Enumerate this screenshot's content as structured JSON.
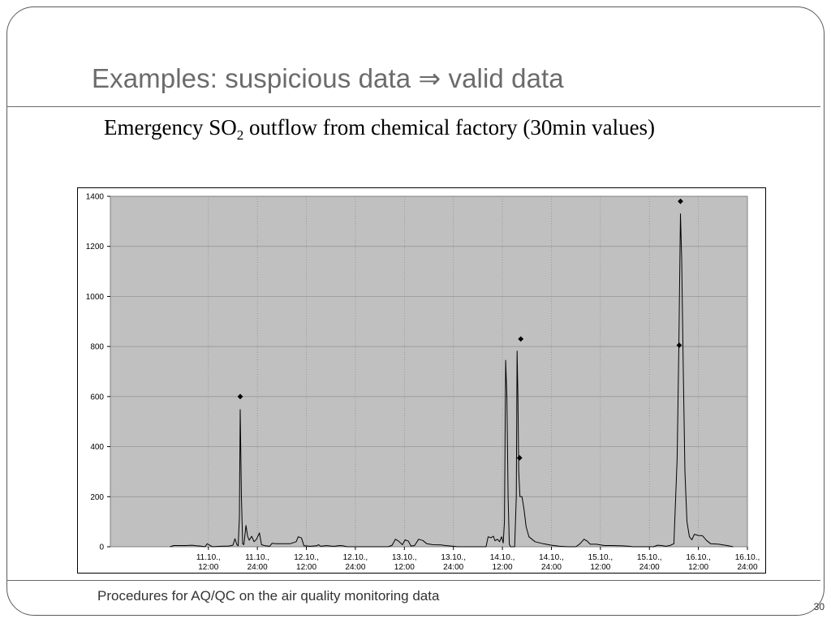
{
  "slide": {
    "title": "Examples: suspicious data ⇒ valid data",
    "subtitle_prefix": "Emergency SO",
    "subtitle_subscript": "2",
    "subtitle_suffix": " outflow from chemical factory (30min values)",
    "footer": "Procedures for AQ/QC on the air quality monitoring data",
    "page_number": "30"
  },
  "chart_data": {
    "type": "line",
    "title": "",
    "xlabel": "",
    "ylabel": "",
    "ylim": [
      0,
      1400
    ],
    "y_ticks": [
      0,
      200,
      400,
      600,
      800,
      1000,
      1200,
      1400
    ],
    "xlim_hours": [
      -24,
      132
    ],
    "x_ticks": [
      {
        "h": 0,
        "line1": "11.10.,",
        "line2": "12:00"
      },
      {
        "h": 12,
        "line1": "11.10.,",
        "line2": "24:00"
      },
      {
        "h": 24,
        "line1": "12.10.,",
        "line2": "12:00"
      },
      {
        "h": 36,
        "line1": "12.10.,",
        "line2": "24:00"
      },
      {
        "h": 48,
        "line1": "13.10.,",
        "line2": "12:00"
      },
      {
        "h": 60,
        "line1": "13.10.,",
        "line2": "24:00"
      },
      {
        "h": 72,
        "line1": "14.10.,",
        "line2": "12:00"
      },
      {
        "h": 84,
        "line1": "14.10.,",
        "line2": "24:00"
      },
      {
        "h": 96,
        "line1": "15.10.,",
        "line2": "12:00"
      },
      {
        "h": 108,
        "line1": "15.10.,",
        "line2": "24:00"
      },
      {
        "h": 120,
        "line1": "16.10.,",
        "line2": "12:00"
      },
      {
        "h": 132,
        "line1": "16.10.,",
        "line2": "24:00"
      }
    ],
    "grid": true,
    "background_color": "#c0c0c0",
    "line_color": "#000000",
    "series": [
      {
        "type": "line",
        "points": [
          [
            -9.4,
            0
          ],
          [
            -8.5,
            5
          ],
          [
            -7,
            5
          ],
          [
            -5.5,
            5
          ],
          [
            -4,
            6
          ],
          [
            -3,
            4
          ],
          [
            -2,
            3
          ],
          [
            -0.8,
            0
          ],
          [
            -0.3,
            12
          ],
          [
            0.3,
            6
          ],
          [
            1,
            0
          ],
          [
            3,
            2
          ],
          [
            5,
            3
          ],
          [
            6,
            6
          ],
          [
            6.5,
            32
          ],
          [
            7,
            8
          ],
          [
            7.3,
            4
          ],
          [
            7.6,
            120
          ],
          [
            7.8,
            548
          ],
          [
            8.1,
            200
          ],
          [
            8.4,
            12
          ],
          [
            8.7,
            8
          ],
          [
            9.2,
            85
          ],
          [
            9.6,
            42
          ],
          [
            10,
            26
          ],
          [
            10.6,
            42
          ],
          [
            11.2,
            20
          ],
          [
            11.8,
            30
          ],
          [
            12.5,
            55
          ],
          [
            13,
            8
          ],
          [
            14,
            4
          ],
          [
            15,
            2
          ],
          [
            15.6,
            14
          ],
          [
            16.5,
            12
          ],
          [
            18,
            12
          ],
          [
            20,
            12
          ],
          [
            21.5,
            20
          ],
          [
            22,
            40
          ],
          [
            22.8,
            35
          ],
          [
            23.4,
            4
          ],
          [
            25,
            2
          ],
          [
            26.5,
            4
          ],
          [
            27,
            8
          ],
          [
            27.5,
            2
          ],
          [
            29,
            5
          ],
          [
            30,
            3
          ],
          [
            31,
            2
          ],
          [
            32,
            5
          ],
          [
            33,
            4
          ],
          [
            34,
            0
          ],
          [
            44,
            0
          ],
          [
            45,
            6
          ],
          [
            45.8,
            30
          ],
          [
            46.6,
            22
          ],
          [
            47.5,
            8
          ],
          [
            48.2,
            28
          ],
          [
            49,
            22
          ],
          [
            49.6,
            3
          ],
          [
            50.5,
            5
          ],
          [
            51.5,
            30
          ],
          [
            52.5,
            25
          ],
          [
            53.5,
            12
          ],
          [
            55,
            8
          ],
          [
            57,
            7
          ],
          [
            58,
            5
          ],
          [
            60,
            2
          ],
          [
            61,
            0
          ],
          [
            68,
            0
          ],
          [
            68.5,
            40
          ],
          [
            69.2,
            36
          ],
          [
            69.8,
            42
          ],
          [
            70.2,
            24
          ],
          [
            70.8,
            30
          ],
          [
            71.3,
            20
          ],
          [
            71.8,
            40
          ],
          [
            72.2,
            15
          ],
          [
            72.5,
            100
          ],
          [
            72.8,
            745
          ],
          [
            73.1,
            600
          ],
          [
            73.4,
            200
          ],
          [
            73.7,
            10
          ],
          [
            74,
            0
          ],
          [
            75,
            0
          ],
          [
            75.4,
            200
          ],
          [
            75.6,
            782
          ],
          [
            75.8,
            600
          ],
          [
            76,
            300
          ],
          [
            76.3,
            200
          ],
          [
            76.8,
            200
          ],
          [
            77.3,
            150
          ],
          [
            77.8,
            80
          ],
          [
            78.5,
            40
          ],
          [
            80,
            20
          ],
          [
            82,
            12
          ],
          [
            84,
            6
          ],
          [
            86,
            2
          ],
          [
            88,
            0
          ],
          [
            90,
            0
          ],
          [
            91,
            12
          ],
          [
            92,
            30
          ],
          [
            92.8,
            22
          ],
          [
            93.5,
            10
          ],
          [
            95,
            10
          ],
          [
            97,
            5
          ],
          [
            99,
            5
          ],
          [
            101,
            4
          ],
          [
            103,
            2
          ],
          [
            104,
            0
          ],
          [
            109,
            0
          ],
          [
            110,
            6
          ],
          [
            111,
            5
          ],
          [
            112,
            2
          ],
          [
            113,
            5
          ],
          [
            114,
            12
          ],
          [
            114.8,
            350
          ],
          [
            115.2,
            800
          ],
          [
            115.6,
            1330
          ],
          [
            115.9,
            1150
          ],
          [
            116.3,
            700
          ],
          [
            116.7,
            300
          ],
          [
            117.2,
            100
          ],
          [
            117.8,
            40
          ],
          [
            118.4,
            28
          ],
          [
            119,
            50
          ],
          [
            120,
            45
          ],
          [
            121,
            44
          ],
          [
            122,
            25
          ],
          [
            123,
            12
          ],
          [
            125,
            10
          ],
          [
            127,
            5
          ],
          [
            128.5,
            0
          ]
        ]
      },
      {
        "type": "scatter",
        "marker": "diamond",
        "points": [
          [
            7.8,
            600
          ],
          [
            76.2,
            355
          ],
          [
            76.5,
            830
          ],
          [
            115.3,
            805
          ],
          [
            115.6,
            1380
          ]
        ]
      }
    ]
  }
}
